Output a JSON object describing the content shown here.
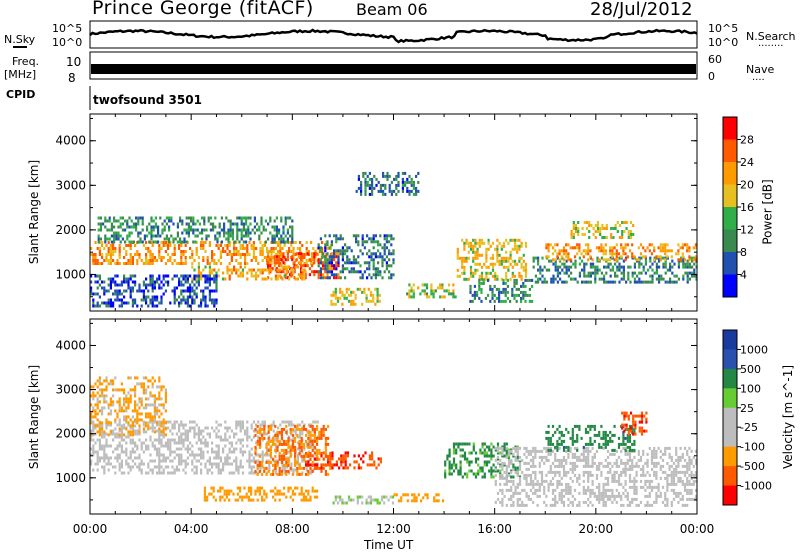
{
  "header": {
    "station": "Prince George (fitACF)",
    "beam": "Beam 06",
    "date": "28/Jul/2012"
  },
  "left_labels": {
    "nsky": "N.Sky",
    "freq_line1": "Freq.",
    "freq_line2": "[MHz]",
    "cpid": "CPID"
  },
  "right_labels": {
    "nsearch": "N.Search",
    "nsearch_dots": "........",
    "nave": "Nave",
    "nave_dots": "....",
    "noise_top": "10^5",
    "noise_bottom": "10^0",
    "nave_top": "60",
    "nave_bottom": "0"
  },
  "noise_ticks": {
    "top": "10^5",
    "bottom": "10^0"
  },
  "freq_ticks": {
    "top": "10",
    "bottom": "8"
  },
  "cpid_text": "twofsound 3501",
  "colors": {
    "power_scale": [
      "#0000ff",
      "#2050b0",
      "#3a8a50",
      "#2fae4a",
      "#e6c020",
      "#ff9a00",
      "#ff5a00",
      "#ff0000"
    ],
    "velocity_scale": [
      "#ff0000",
      "#ff5a00",
      "#ff9a00",
      "#bdbdbd",
      "#bdbdbd",
      "#66cc33",
      "#228844",
      "#2a50b0",
      "#1a3aa0"
    ]
  },
  "chart_data": [
    {
      "type": "heatmap",
      "panel": "power",
      "xlabel": "",
      "ylabel": "Slant Range [km]",
      "xlim": [
        "00:00",
        "24:00"
      ],
      "ylim": [
        180,
        4600
      ],
      "yticks": [
        "1000",
        "2000",
        "3000",
        "4000"
      ],
      "colorbar_label": "Power [dB]",
      "colorbar_ticks": [
        "4",
        "8",
        "12",
        "16",
        "20",
        "24",
        "28"
      ],
      "colorbar_range": [
        0,
        32
      ],
      "bands": [
        {
          "t0": 0.0,
          "t1": 9.5,
          "r0": 1250,
          "r1": 1750,
          "v": 22
        },
        {
          "t0": 0.3,
          "t1": 8.0,
          "r0": 1700,
          "r1": 2300,
          "v": 10
        },
        {
          "t0": 7.0,
          "t1": 9.8,
          "r0": 900,
          "r1": 1500,
          "v": 27
        },
        {
          "t0": 4.0,
          "t1": 8.5,
          "r0": 900,
          "r1": 1200,
          "v": 20
        },
        {
          "t0": 0.0,
          "t1": 5.0,
          "r0": 300,
          "r1": 1000,
          "v": 6
        },
        {
          "t0": 9.5,
          "t1": 11.5,
          "r0": 350,
          "r1": 700,
          "v": 18
        },
        {
          "t0": 9.0,
          "t1": 12.0,
          "r0": 900,
          "r1": 1900,
          "v": 8
        },
        {
          "t0": 12.5,
          "t1": 14.5,
          "r0": 500,
          "r1": 800,
          "v": 16
        },
        {
          "t0": 14.5,
          "t1": 17.2,
          "r0": 900,
          "r1": 1800,
          "v": 19
        },
        {
          "t0": 15.0,
          "t1": 17.5,
          "r0": 400,
          "r1": 900,
          "v": 10
        },
        {
          "t0": 17.5,
          "t1": 24.0,
          "r0": 800,
          "r1": 1400,
          "v": 9
        },
        {
          "t0": 18.0,
          "t1": 24.0,
          "r0": 1300,
          "r1": 1700,
          "v": 22
        },
        {
          "t0": 19.0,
          "t1": 21.5,
          "r0": 1800,
          "r1": 2200,
          "v": 18
        },
        {
          "t0": 10.5,
          "t1": 13.0,
          "r0": 2800,
          "r1": 3300,
          "v": 8
        }
      ]
    },
    {
      "type": "heatmap",
      "panel": "velocity",
      "xlabel": "Time UT",
      "ylabel": "Slant Range [km]",
      "xlim": [
        "00:00",
        "24:00"
      ],
      "ylim": [
        180,
        4600
      ],
      "xticks": [
        "00:00",
        "04:00",
        "08:00",
        "12:00",
        "16:00",
        "20:00",
        "00:00"
      ],
      "yticks": [
        "1000",
        "2000",
        "3000",
        "4000"
      ],
      "colorbar_label": "Velocity [m s^-1]",
      "colorbar_ticks": [
        "-1000",
        "-500",
        "-100",
        "-25",
        "25",
        "100",
        "500",
        "1000"
      ],
      "bands": [
        {
          "t0": 0.0,
          "t1": 9.0,
          "r0": 1100,
          "r1": 2300,
          "v": 0
        },
        {
          "t0": 6.5,
          "t1": 9.5,
          "r0": 1100,
          "r1": 2200,
          "v": -300
        },
        {
          "t0": 8.5,
          "t1": 11.5,
          "r0": 1200,
          "r1": 1600,
          "v": -600
        },
        {
          "t0": 4.5,
          "t1": 9.0,
          "r0": 500,
          "r1": 800,
          "v": -150
        },
        {
          "t0": 9.5,
          "t1": 12.0,
          "r0": 400,
          "r1": 600,
          "v": 60
        },
        {
          "t0": 12.0,
          "t1": 14.0,
          "r0": 450,
          "r1": 650,
          "v": -200
        },
        {
          "t0": 14.0,
          "t1": 17.0,
          "r0": 1000,
          "r1": 1800,
          "v": 200
        },
        {
          "t0": 16.0,
          "t1": 24.0,
          "r0": 400,
          "r1": 1700,
          "v": 0
        },
        {
          "t0": 18.0,
          "t1": 21.5,
          "r0": 1600,
          "r1": 2200,
          "v": 300
        },
        {
          "t0": 21.0,
          "t1": 22.0,
          "r0": 2000,
          "r1": 2500,
          "v": -600
        },
        {
          "t0": 0.0,
          "t1": 3.0,
          "r0": 2000,
          "r1": 3300,
          "v": -80
        }
      ]
    }
  ]
}
